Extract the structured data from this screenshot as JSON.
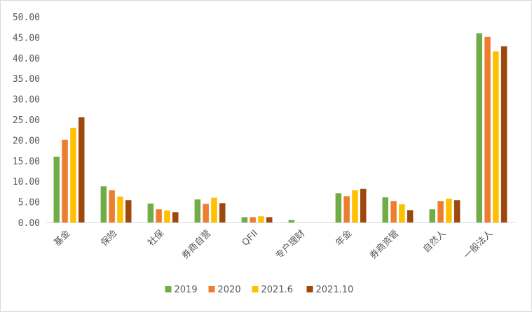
{
  "chart_data": {
    "type": "bar",
    "title": "",
    "xlabel": "",
    "ylabel": "",
    "ylim": [
      0,
      50
    ],
    "yticks": [
      "0.00",
      "5.00",
      "10.00",
      "15.00",
      "20.00",
      "25.00",
      "30.00",
      "35.00",
      "40.00",
      "45.00",
      "50.00"
    ],
    "grid": false,
    "legend_position": "bottom",
    "categories": [
      "基金",
      "保险",
      "社保",
      "券商自营",
      "QFII",
      "专户理财",
      "年金",
      "券商资管",
      "自然人",
      "一般法人"
    ],
    "series": [
      {
        "name": "2019",
        "color": "#70ad47",
        "values": [
          16.0,
          8.8,
          4.6,
          5.6,
          1.3,
          0.6,
          7.1,
          6.1,
          3.2,
          46.0
        ]
      },
      {
        "name": "2020",
        "color": "#ed7d31",
        "values": [
          20.1,
          7.8,
          3.2,
          4.5,
          1.3,
          0.0,
          6.4,
          5.2,
          5.2,
          45.1
        ]
      },
      {
        "name": "2021.6",
        "color": "#ffc000",
        "values": [
          23.0,
          6.3,
          2.9,
          6.0,
          1.5,
          0.0,
          7.8,
          4.4,
          5.8,
          41.6
        ]
      },
      {
        "name": "2021.10",
        "color": "#9e480e",
        "values": [
          25.6,
          5.4,
          2.5,
          4.7,
          1.3,
          0.0,
          8.2,
          3.0,
          5.4,
          42.8
        ]
      }
    ]
  }
}
